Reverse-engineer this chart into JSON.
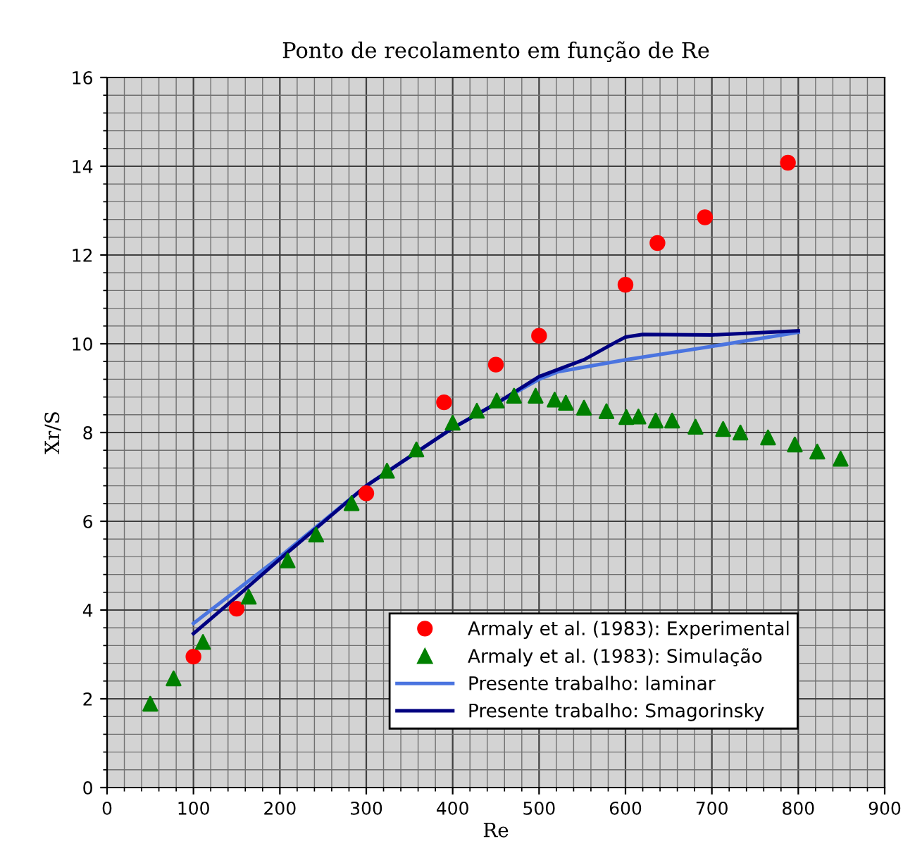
{
  "chart_data": {
    "type": "scatter",
    "title": "Ponto de recolamento em função de Re",
    "xlabel": "Re",
    "ylabel": "Xr/S",
    "xlim": [
      0,
      900
    ],
    "xticks": [
      0,
      100,
      200,
      300,
      400,
      500,
      600,
      700,
      800,
      900
    ],
    "ylim": [
      0,
      16
    ],
    "yticks": [
      0,
      2,
      4,
      6,
      8,
      10,
      12,
      14,
      16
    ],
    "grid": true,
    "legend": "bottom right",
    "series": [
      {
        "name": "Armaly et al. (1983): Experimental",
        "marker": "circle",
        "color": "#ff0000",
        "x": [
          100,
          150,
          300,
          390,
          450,
          500,
          600,
          637,
          692,
          788
        ],
        "values": [
          2.95,
          4.03,
          6.63,
          8.68,
          9.53,
          10.18,
          11.33,
          12.27,
          12.85,
          14.08
        ]
      },
      {
        "name": "Armaly et al. (1983): Simulação",
        "marker": "triangle",
        "color": "#008000",
        "x": [
          50,
          77,
          111,
          164,
          209,
          242,
          283,
          324,
          358,
          400,
          428,
          451,
          471,
          496,
          518,
          531,
          552,
          578,
          601,
          615,
          635,
          654,
          681,
          713,
          733,
          765,
          796,
          822,
          849
        ],
        "values": [
          1.89,
          2.46,
          3.28,
          4.3,
          5.12,
          5.7,
          6.41,
          7.14,
          7.62,
          8.22,
          8.49,
          8.72,
          8.83,
          8.83,
          8.74,
          8.67,
          8.56,
          8.48,
          8.35,
          8.36,
          8.27,
          8.27,
          8.13,
          8.08,
          8.0,
          7.89,
          7.73,
          7.57,
          7.41
        ]
      },
      {
        "name": "Presente trabalho: laminar",
        "type": "line",
        "line_style": "solid",
        "color": "#4a74e0",
        "x": [
          100,
          150,
          200,
          300,
          400,
          450,
          500,
          522,
          600,
          700,
          800
        ],
        "values": [
          3.7,
          4.45,
          5.2,
          6.8,
          8.1,
          8.65,
          9.2,
          9.37,
          9.64,
          9.94,
          10.26
        ]
      },
      {
        "name": "Presente trabalho: Smagorinsky",
        "type": "line",
        "line_style": "solid",
        "color": "#000080",
        "x": [
          100,
          150,
          200,
          300,
          400,
          450,
          500,
          552,
          590,
          600,
          620,
          700,
          800
        ],
        "values": [
          3.47,
          4.3,
          5.15,
          6.8,
          8.1,
          8.65,
          9.26,
          9.64,
          10.05,
          10.15,
          10.21,
          10.2,
          10.29
        ]
      }
    ]
  }
}
